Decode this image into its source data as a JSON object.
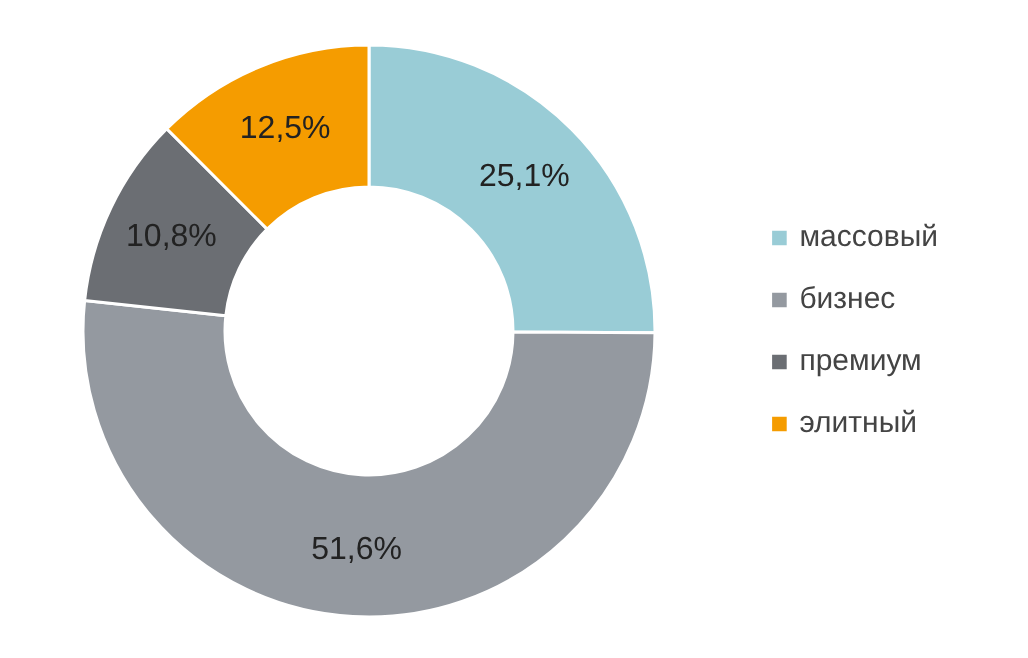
{
  "chart_data": {
    "type": "donut",
    "categories": [
      "массовый",
      "бизнес",
      "премиум",
      "элитный"
    ],
    "values": [
      25.1,
      51.6,
      10.8,
      12.5
    ],
    "colors": [
      "#99ccd6",
      "#9499a0",
      "#6b6e73",
      "#f59c00"
    ],
    "value_labels": [
      "25,1%",
      "51,6%",
      "10,8%",
      "12,5%"
    ],
    "legend": "right"
  }
}
